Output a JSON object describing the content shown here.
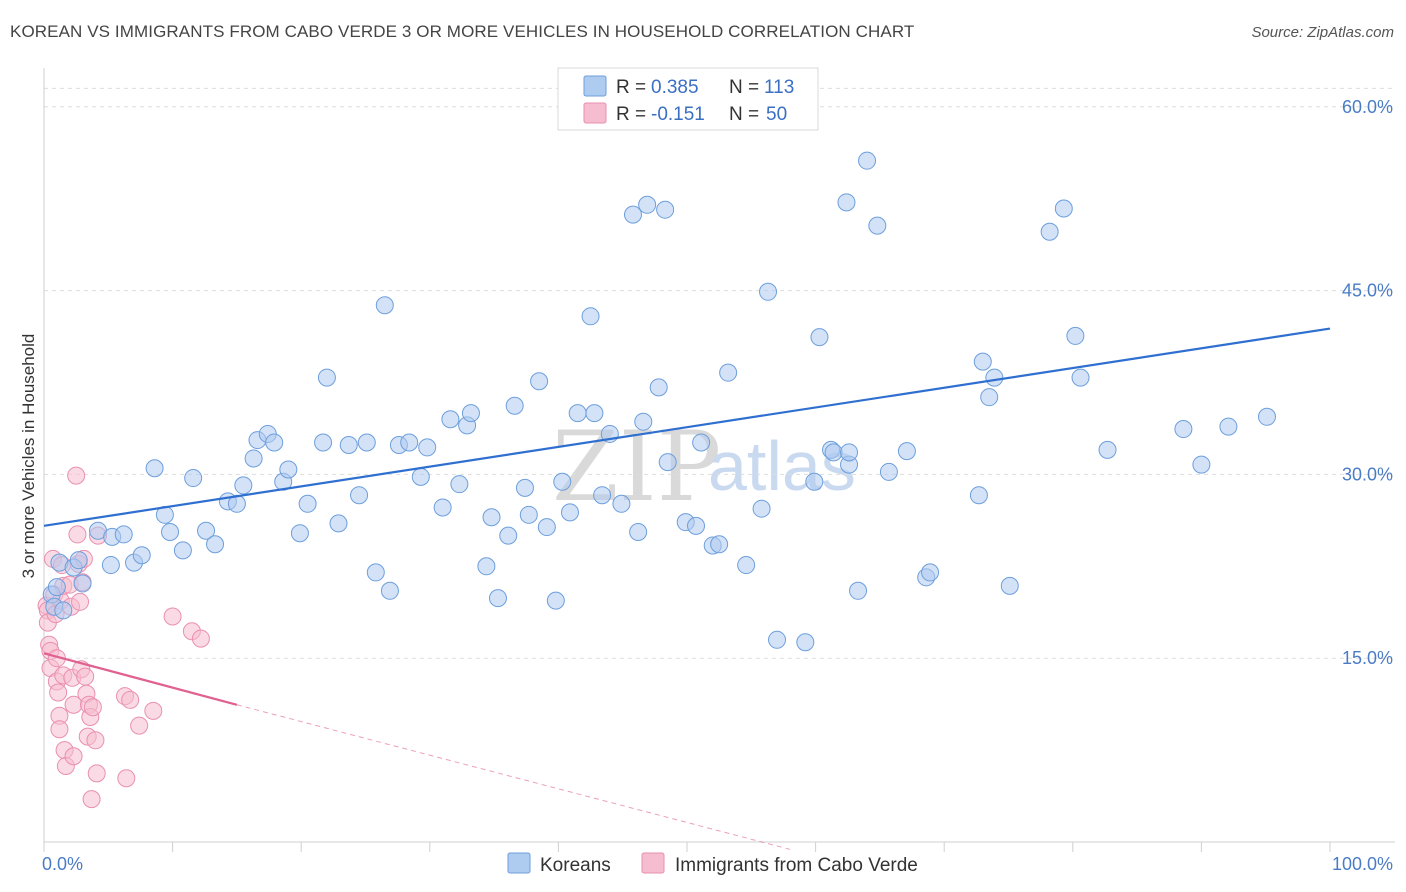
{
  "header": {
    "title": "KOREAN VS IMMIGRANTS FROM CABO VERDE 3 OR MORE VEHICLES IN HOUSEHOLD CORRELATION CHART",
    "source": "Source: ZipAtlas.com"
  },
  "watermark": {
    "zip": "ZIP",
    "atlas": "atlas"
  },
  "colors": {
    "blue_fill": "#aecbf0",
    "blue_stroke": "#6d9fdc",
    "blue_line": "#2f6fd0",
    "pink_fill": "#f6bdd0",
    "pink_stroke": "#ea8fb0",
    "pink_line": "#e0608f",
    "grid": "#dddddd",
    "axis_label": "#4a7cc6"
  },
  "legend": {
    "rows": [
      {
        "r_label": "R =",
        "r_value": "0.385",
        "n_label": "N =",
        "n_value": "113",
        "color": "#aecbf0",
        "stroke": "#6d9fdc"
      },
      {
        "r_label": "R =",
        "r_value": "-0.151",
        "n_label": "N =",
        "n_value": "50",
        "color": "#f6bdd0",
        "stroke": "#ea8fb0"
      }
    ]
  },
  "bottom_legend": {
    "items": [
      {
        "label": "Koreans",
        "color": "#aecbf0",
        "stroke": "#6d9fdc"
      },
      {
        "label": "Immigrants from Cabo Verde",
        "color": "#f6bdd0",
        "stroke": "#ea8fb0"
      }
    ]
  },
  "chart_data": {
    "type": "scatter",
    "title": "KOREAN VS IMMIGRANTS FROM CABO VERDE 3 OR MORE VEHICLES IN HOUSEHOLD CORRELATION CHART",
    "xlabel": "",
    "ylabel": "3 or more Vehicles in Household",
    "xlim": [
      0,
      100
    ],
    "ylim": [
      0,
      63
    ],
    "x_tick_labels": [
      "0.0%",
      "100.0%"
    ],
    "y_ticks": [
      15,
      30,
      45,
      60
    ],
    "y_tick_labels": [
      "15.0%",
      "30.0%",
      "45.0%",
      "60.0%"
    ],
    "grid": true,
    "series": [
      {
        "name": "Koreans",
        "R": 0.385,
        "N": 113,
        "trend": {
          "x": [
            0,
            100
          ],
          "y": [
            25.8,
            41.9
          ]
        },
        "points": [
          [
            0.6,
            20.2
          ],
          [
            0.8,
            19.2
          ],
          [
            1.0,
            20.8
          ],
          [
            1.2,
            22.8
          ],
          [
            1.5,
            18.9
          ],
          [
            2.3,
            22.4
          ],
          [
            2.7,
            23.0
          ],
          [
            3.0,
            21.1
          ],
          [
            4.2,
            25.4
          ],
          [
            5.2,
            22.6
          ],
          [
            5.3,
            24.9
          ],
          [
            6.2,
            25.1
          ],
          [
            7.0,
            22.8
          ],
          [
            7.6,
            23.4
          ],
          [
            8.6,
            30.5
          ],
          [
            9.4,
            26.7
          ],
          [
            9.8,
            25.3
          ],
          [
            10.8,
            23.8
          ],
          [
            11.6,
            29.7
          ],
          [
            12.6,
            25.4
          ],
          [
            13.3,
            24.3
          ],
          [
            14.3,
            27.8
          ],
          [
            15.0,
            27.6
          ],
          [
            15.5,
            29.1
          ],
          [
            16.3,
            31.3
          ],
          [
            16.6,
            32.8
          ],
          [
            17.4,
            33.3
          ],
          [
            17.9,
            32.6
          ],
          [
            18.6,
            29.4
          ],
          [
            19.0,
            30.4
          ],
          [
            19.9,
            25.2
          ],
          [
            20.5,
            27.6
          ],
          [
            21.7,
            32.6
          ],
          [
            22.0,
            37.9
          ],
          [
            22.9,
            26.0
          ],
          [
            23.7,
            32.4
          ],
          [
            24.5,
            28.3
          ],
          [
            25.1,
            32.6
          ],
          [
            25.8,
            22.0
          ],
          [
            26.5,
            43.8
          ],
          [
            26.9,
            20.5
          ],
          [
            27.6,
            32.4
          ],
          [
            28.4,
            32.6
          ],
          [
            29.3,
            29.8
          ],
          [
            29.8,
            32.2
          ],
          [
            31.0,
            27.3
          ],
          [
            31.6,
            34.5
          ],
          [
            32.3,
            29.2
          ],
          [
            32.9,
            34.0
          ],
          [
            33.2,
            35.0
          ],
          [
            34.4,
            22.5
          ],
          [
            34.8,
            26.5
          ],
          [
            35.3,
            19.9
          ],
          [
            36.1,
            25.0
          ],
          [
            36.6,
            35.6
          ],
          [
            37.4,
            28.9
          ],
          [
            37.7,
            26.7
          ],
          [
            38.5,
            37.6
          ],
          [
            39.1,
            25.7
          ],
          [
            39.8,
            19.7
          ],
          [
            40.3,
            29.4
          ],
          [
            40.9,
            26.9
          ],
          [
            41.5,
            35.0
          ],
          [
            42.5,
            42.9
          ],
          [
            42.8,
            35.0
          ],
          [
            43.4,
            28.3
          ],
          [
            44.0,
            33.3
          ],
          [
            44.9,
            27.6
          ],
          [
            45.8,
            51.2
          ],
          [
            46.2,
            25.3
          ],
          [
            46.6,
            34.3
          ],
          [
            46.9,
            52.0
          ],
          [
            47.8,
            37.1
          ],
          [
            48.3,
            51.6
          ],
          [
            48.5,
            31.0
          ],
          [
            49.9,
            26.1
          ],
          [
            50.7,
            25.8
          ],
          [
            51.1,
            32.6
          ],
          [
            52.0,
            24.2
          ],
          [
            52.5,
            24.3
          ],
          [
            53.2,
            38.3
          ],
          [
            54.6,
            22.6
          ],
          [
            55.8,
            27.2
          ],
          [
            56.3,
            44.9
          ],
          [
            57.0,
            16.5
          ],
          [
            59.2,
            16.3
          ],
          [
            59.9,
            29.4
          ],
          [
            60.3,
            41.2
          ],
          [
            61.2,
            32.0
          ],
          [
            61.4,
            31.8
          ],
          [
            62.4,
            52.2
          ],
          [
            62.6,
            30.8
          ],
          [
            62.6,
            31.8
          ],
          [
            63.3,
            20.5
          ],
          [
            64.0,
            55.6
          ],
          [
            64.8,
            50.3
          ],
          [
            65.7,
            30.2
          ],
          [
            67.1,
            31.9
          ],
          [
            68.6,
            21.6
          ],
          [
            68.9,
            22.0
          ],
          [
            72.7,
            28.3
          ],
          [
            73.0,
            39.2
          ],
          [
            73.5,
            36.3
          ],
          [
            73.9,
            37.9
          ],
          [
            75.1,
            20.9
          ],
          [
            78.2,
            49.8
          ],
          [
            79.3,
            51.7
          ],
          [
            80.2,
            41.3
          ],
          [
            80.6,
            37.9
          ],
          [
            82.7,
            32.0
          ],
          [
            88.6,
            33.7
          ],
          [
            90.0,
            30.8
          ],
          [
            92.1,
            33.9
          ],
          [
            95.1,
            34.7
          ]
        ]
      },
      {
        "name": "Immigrants from Cabo Verde",
        "R": -0.151,
        "N": 50,
        "trend": {
          "x": [
            0,
            15
          ],
          "y": [
            15.4,
            11.2
          ],
          "dashed_extension": {
            "x": [
              15,
              58
            ],
            "y": [
              11.2,
              -0.6
            ]
          }
        },
        "points": [
          [
            0.2,
            19.3
          ],
          [
            0.3,
            18.9
          ],
          [
            0.3,
            17.9
          ],
          [
            0.4,
            16.1
          ],
          [
            0.5,
            15.6
          ],
          [
            0.5,
            14.2
          ],
          [
            0.7,
            23.1
          ],
          [
            0.8,
            20.2
          ],
          [
            0.9,
            18.6
          ],
          [
            1.0,
            15.0
          ],
          [
            1.0,
            13.1
          ],
          [
            1.1,
            12.2
          ],
          [
            1.2,
            10.3
          ],
          [
            1.2,
            9.2
          ],
          [
            1.3,
            19.7
          ],
          [
            1.4,
            22.6
          ],
          [
            1.5,
            20.9
          ],
          [
            1.5,
            13.6
          ],
          [
            1.6,
            7.5
          ],
          [
            1.7,
            6.2
          ],
          [
            2.0,
            21.0
          ],
          [
            2.1,
            19.2
          ],
          [
            2.2,
            13.4
          ],
          [
            2.3,
            11.2
          ],
          [
            2.3,
            7.0
          ],
          [
            2.5,
            29.9
          ],
          [
            2.6,
            25.1
          ],
          [
            2.7,
            22.7
          ],
          [
            2.8,
            19.6
          ],
          [
            2.9,
            14.1
          ],
          [
            3.0,
            21.2
          ],
          [
            3.1,
            23.1
          ],
          [
            3.2,
            13.5
          ],
          [
            3.3,
            12.1
          ],
          [
            3.4,
            8.6
          ],
          [
            3.5,
            11.2
          ],
          [
            3.6,
            10.2
          ],
          [
            3.7,
            3.5
          ],
          [
            3.8,
            11.0
          ],
          [
            4.0,
            8.3
          ],
          [
            4.1,
            5.6
          ],
          [
            4.2,
            25.0
          ],
          [
            6.3,
            11.9
          ],
          [
            6.4,
            5.2
          ],
          [
            6.7,
            11.6
          ],
          [
            7.4,
            9.5
          ],
          [
            8.5,
            10.7
          ],
          [
            10.0,
            18.4
          ],
          [
            11.5,
            17.2
          ],
          [
            12.2,
            16.6
          ]
        ]
      }
    ]
  }
}
